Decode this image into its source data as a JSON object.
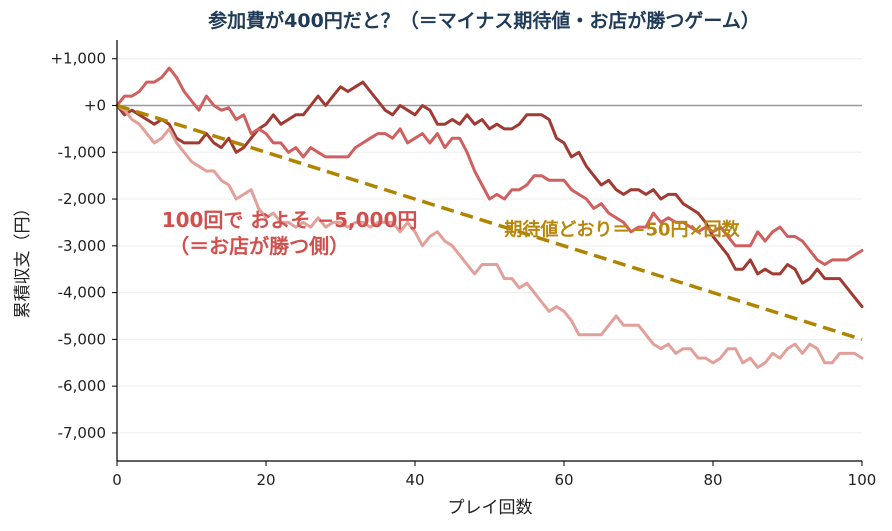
{
  "chart_data": {
    "type": "line",
    "title": "参加費が400円だと？（＝マイナス期待値・お店が勝つゲーム）",
    "xlabel": "プレイ回数",
    "ylabel": "累積収支（円）",
    "xlim": [
      0,
      100
    ],
    "ylim": [
      -7600,
      1400
    ],
    "xticks": [
      0,
      20,
      40,
      60,
      80,
      100
    ],
    "xtick_labels": [
      "0",
      "20",
      "40",
      "60",
      "80",
      "100"
    ],
    "yticks": [
      1000,
      0,
      -1000,
      -2000,
      -3000,
      -4000,
      -5000,
      -6000,
      -7000
    ],
    "ytick_labels": [
      "+1,000",
      "+0",
      "-1,000",
      "-2,000",
      "-3,000",
      "-4,000",
      "-5,000",
      "-6,000",
      "-7,000"
    ],
    "grid": "horizontal",
    "zero_line": true,
    "colors": {
      "series_dark": "#a03a32",
      "series_mid": "#d06060",
      "series_light": "#e2a09a",
      "expected": "#b08400",
      "zero": "#999999",
      "grid": "#eeeeee"
    },
    "series": [
      {
        "color_key": "series_dark",
        "x": [
          0,
          1,
          2,
          3,
          4,
          5,
          6,
          7,
          8,
          9,
          10,
          11,
          12,
          13,
          14,
          15,
          16,
          17,
          18,
          19,
          20,
          21,
          22,
          23,
          24,
          25,
          26,
          27,
          28,
          29,
          30,
          31,
          32,
          33,
          34,
          35,
          36,
          37,
          38,
          39,
          40,
          41,
          42,
          43,
          44,
          45,
          46,
          47,
          48,
          49,
          50,
          51,
          52,
          53,
          54,
          55,
          56,
          57,
          58,
          59,
          60,
          61,
          62,
          63,
          64,
          65,
          66,
          67,
          68,
          69,
          70,
          71,
          72,
          73,
          74,
          75,
          76,
          77,
          78,
          79,
          80,
          81,
          82,
          83,
          84,
          85,
          86,
          87,
          88,
          89,
          90,
          91,
          92,
          93,
          94,
          95,
          96,
          97,
          98,
          99,
          100
        ],
        "values": [
          0,
          -200,
          -100,
          -200,
          -300,
          -400,
          -300,
          -400,
          -700,
          -800,
          -800,
          -800,
          -600,
          -800,
          -900,
          -700,
          -1000,
          -900,
          -700,
          -500,
          -400,
          -200,
          -400,
          -300,
          -200,
          -200,
          0,
          200,
          0,
          200,
          400,
          300,
          400,
          500,
          300,
          100,
          -100,
          -200,
          0,
          -100,
          -200,
          0,
          -100,
          -400,
          -400,
          -300,
          -400,
          -200,
          -400,
          -300,
          -500,
          -400,
          -500,
          -500,
          -400,
          -200,
          -200,
          -200,
          -300,
          -700,
          -800,
          -1100,
          -1000,
          -1300,
          -1500,
          -1700,
          -1600,
          -1800,
          -1900,
          -1800,
          -1800,
          -1900,
          -1800,
          -2000,
          -1900,
          -1900,
          -2100,
          -2200,
          -2300,
          -2500,
          -2800,
          -3000,
          -3200,
          -3500,
          -3500,
          -3300,
          -3600,
          -3500,
          -3600,
          -3600,
          -3400,
          -3500,
          -3800,
          -3700,
          -3500,
          -3700,
          -3700,
          -3700,
          -3900,
          -4100,
          -4300
        ]
      },
      {
        "color_key": "series_mid",
        "x": [
          0,
          1,
          2,
          3,
          4,
          5,
          6,
          7,
          8,
          9,
          10,
          11,
          12,
          13,
          14,
          15,
          16,
          17,
          18,
          19,
          20,
          21,
          22,
          23,
          24,
          25,
          26,
          27,
          28,
          29,
          30,
          31,
          32,
          33,
          34,
          35,
          36,
          37,
          38,
          39,
          40,
          41,
          42,
          43,
          44,
          45,
          46,
          47,
          48,
          49,
          50,
          51,
          52,
          53,
          54,
          55,
          56,
          57,
          58,
          59,
          60,
          61,
          62,
          63,
          64,
          65,
          66,
          67,
          68,
          69,
          70,
          71,
          72,
          73,
          74,
          75,
          76,
          77,
          78,
          79,
          80,
          81,
          82,
          83,
          84,
          85,
          86,
          87,
          88,
          89,
          90,
          91,
          92,
          93,
          94,
          95,
          96,
          97,
          98,
          99,
          100
        ],
        "values": [
          0,
          200,
          200,
          300,
          500,
          500,
          600,
          800,
          600,
          300,
          100,
          -100,
          200,
          0,
          -100,
          -50,
          -300,
          -200,
          -600,
          -500,
          -600,
          -800,
          -800,
          -1000,
          -900,
          -1100,
          -900,
          -1000,
          -1100,
          -1100,
          -1100,
          -1100,
          -900,
          -800,
          -700,
          -600,
          -600,
          -700,
          -500,
          -800,
          -700,
          -600,
          -800,
          -600,
          -900,
          -700,
          -700,
          -1000,
          -1400,
          -1700,
          -2000,
          -1900,
          -2000,
          -1800,
          -1800,
          -1700,
          -1500,
          -1500,
          -1600,
          -1600,
          -1600,
          -1800,
          -1900,
          -2000,
          -2200,
          -2100,
          -2300,
          -2400,
          -2500,
          -2700,
          -2600,
          -2600,
          -2300,
          -2500,
          -2400,
          -2500,
          -2500,
          -2600,
          -2700,
          -2600,
          -2700,
          -2600,
          -2800,
          -3000,
          -3000,
          -3000,
          -2700,
          -2900,
          -2700,
          -2600,
          -2800,
          -2800,
          -2900,
          -3100,
          -3300,
          -3400,
          -3300,
          -3300,
          -3300,
          -3200,
          -3100
        ]
      },
      {
        "color_key": "series_light",
        "x": [
          0,
          1,
          2,
          3,
          4,
          5,
          6,
          7,
          8,
          9,
          10,
          11,
          12,
          13,
          14,
          15,
          16,
          17,
          18,
          19,
          20,
          21,
          22,
          23,
          24,
          25,
          26,
          27,
          28,
          29,
          30,
          31,
          32,
          33,
          34,
          35,
          36,
          37,
          38,
          39,
          40,
          41,
          42,
          43,
          44,
          45,
          46,
          47,
          48,
          49,
          50,
          51,
          52,
          53,
          54,
          55,
          56,
          57,
          58,
          59,
          60,
          61,
          62,
          63,
          64,
          65,
          66,
          67,
          68,
          69,
          70,
          71,
          72,
          73,
          74,
          75,
          76,
          77,
          78,
          79,
          80,
          81,
          82,
          83,
          84,
          85,
          86,
          87,
          88,
          89,
          90,
          91,
          92,
          93,
          94,
          95,
          96,
          97,
          98,
          99,
          100
        ],
        "values": [
          0,
          -100,
          -300,
          -400,
          -600,
          -800,
          -700,
          -500,
          -800,
          -1000,
          -1200,
          -1300,
          -1400,
          -1400,
          -1600,
          -1700,
          -2000,
          -1900,
          -1800,
          -2200,
          -2400,
          -2300,
          -2500,
          -2500,
          -2600,
          -2500,
          -2600,
          -2400,
          -2600,
          -2500,
          -2500,
          -2600,
          -2500,
          -2500,
          -2600,
          -2500,
          -2500,
          -2500,
          -2700,
          -2500,
          -2700,
          -3000,
          -2800,
          -2700,
          -2900,
          -3000,
          -3200,
          -3400,
          -3600,
          -3400,
          -3400,
          -3400,
          -3700,
          -3700,
          -3900,
          -3800,
          -4000,
          -4200,
          -4400,
          -4300,
          -4400,
          -4600,
          -4900,
          -4900,
          -4900,
          -4900,
          -4700,
          -4500,
          -4700,
          -4700,
          -4700,
          -4900,
          -5100,
          -5200,
          -5100,
          -5300,
          -5200,
          -5200,
          -5400,
          -5400,
          -5500,
          -5400,
          -5200,
          -5200,
          -5500,
          -5400,
          -5600,
          -5500,
          -5300,
          -5400,
          -5200,
          -5100,
          -5300,
          -5100,
          -5200,
          -5500,
          -5500,
          -5300,
          -5300,
          -5300,
          -5400
        ]
      },
      {
        "color_key": "expected",
        "style": "dashed",
        "x": [
          0,
          100
        ],
        "values": [
          0,
          -5000
        ]
      }
    ],
    "annotations": [
      {
        "text": "100回で およそ −5,000円",
        "x": 6,
        "y": -2600,
        "color_key": "series_mid"
      },
      {
        "text": "（＝お店が勝つ側）",
        "x": 7,
        "y": -3150,
        "color_key": "series_mid"
      },
      {
        "text": "期待値どおり＝−50円×回数",
        "x": 52,
        "y": -2780,
        "color_key": "expected"
      }
    ]
  }
}
